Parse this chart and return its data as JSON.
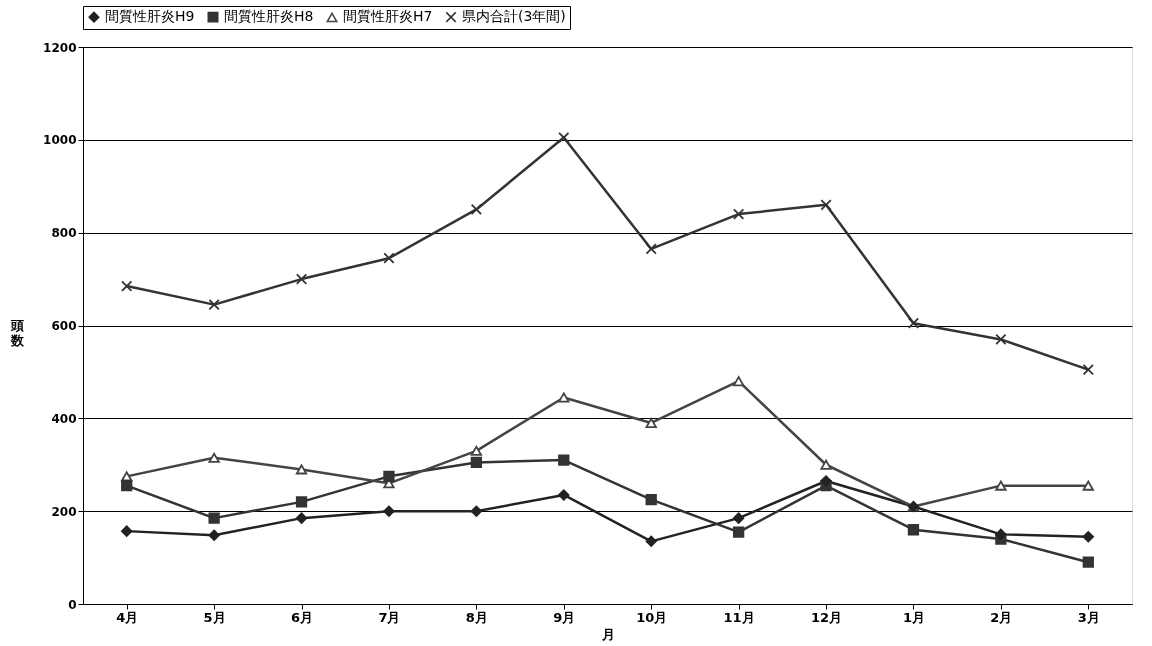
{
  "chart_data": {
    "type": "line",
    "xlabel": "月",
    "ylabel": "頭数",
    "categories": [
      "4月",
      "5月",
      "6月",
      "7月",
      "8月",
      "9月",
      "10月",
      "11月",
      "12月",
      "1月",
      "2月",
      "3月"
    ],
    "series": [
      {
        "name": "間質性肝炎H9",
        "color": "#222222",
        "marker": "diamond",
        "values": [
          157,
          148,
          185,
          200,
          200,
          235,
          135,
          185,
          265,
          210,
          150,
          145
        ]
      },
      {
        "name": "間質性肝炎H8",
        "color": "#333333",
        "marker": "square",
        "values": [
          255,
          185,
          220,
          275,
          305,
          310,
          225,
          155,
          255,
          160,
          140,
          90
        ]
      },
      {
        "name": "間質性肝炎H7",
        "color": "#444444",
        "marker": "triangle",
        "values": [
          275,
          315,
          290,
          260,
          330,
          445,
          390,
          480,
          300,
          210,
          255,
          255
        ]
      },
      {
        "name": "県内合計(3年間)",
        "color": "#333333",
        "marker": "cross",
        "values": [
          685,
          645,
          700,
          745,
          850,
          1005,
          765,
          840,
          860,
          605,
          570,
          505
        ]
      }
    ],
    "ylim": [
      0,
      1200
    ],
    "yticks": [
      0,
      200,
      400,
      600,
      800,
      1000,
      1200
    ],
    "grid": "y",
    "legend": "top",
    "line_style": "solid"
  }
}
